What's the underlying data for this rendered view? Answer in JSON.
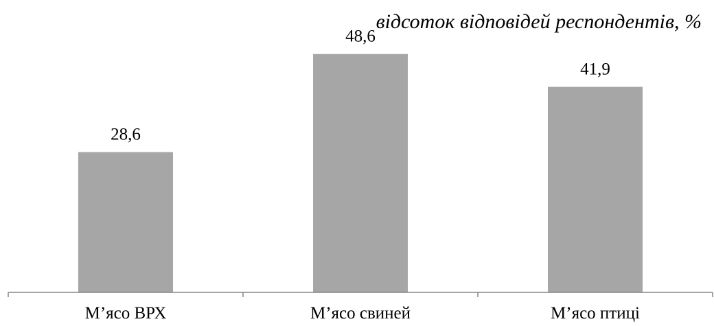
{
  "chart_data": {
    "type": "bar",
    "title": "",
    "unit_label": "відсоток відповідей респондентів, %",
    "xlabel": "",
    "ylabel": "",
    "categories": [
      "М’ясо ВРХ",
      "М’ясо свиней",
      "М’ясо птиці"
    ],
    "values": [
      28.6,
      48.6,
      41.9
    ],
    "data_labels": [
      "28,6",
      "48,6",
      "41,9"
    ],
    "ylim": [
      0,
      55
    ],
    "grid": false,
    "legend": "none",
    "bar_color": "#a6a6a6",
    "axis_color": "#868686"
  }
}
